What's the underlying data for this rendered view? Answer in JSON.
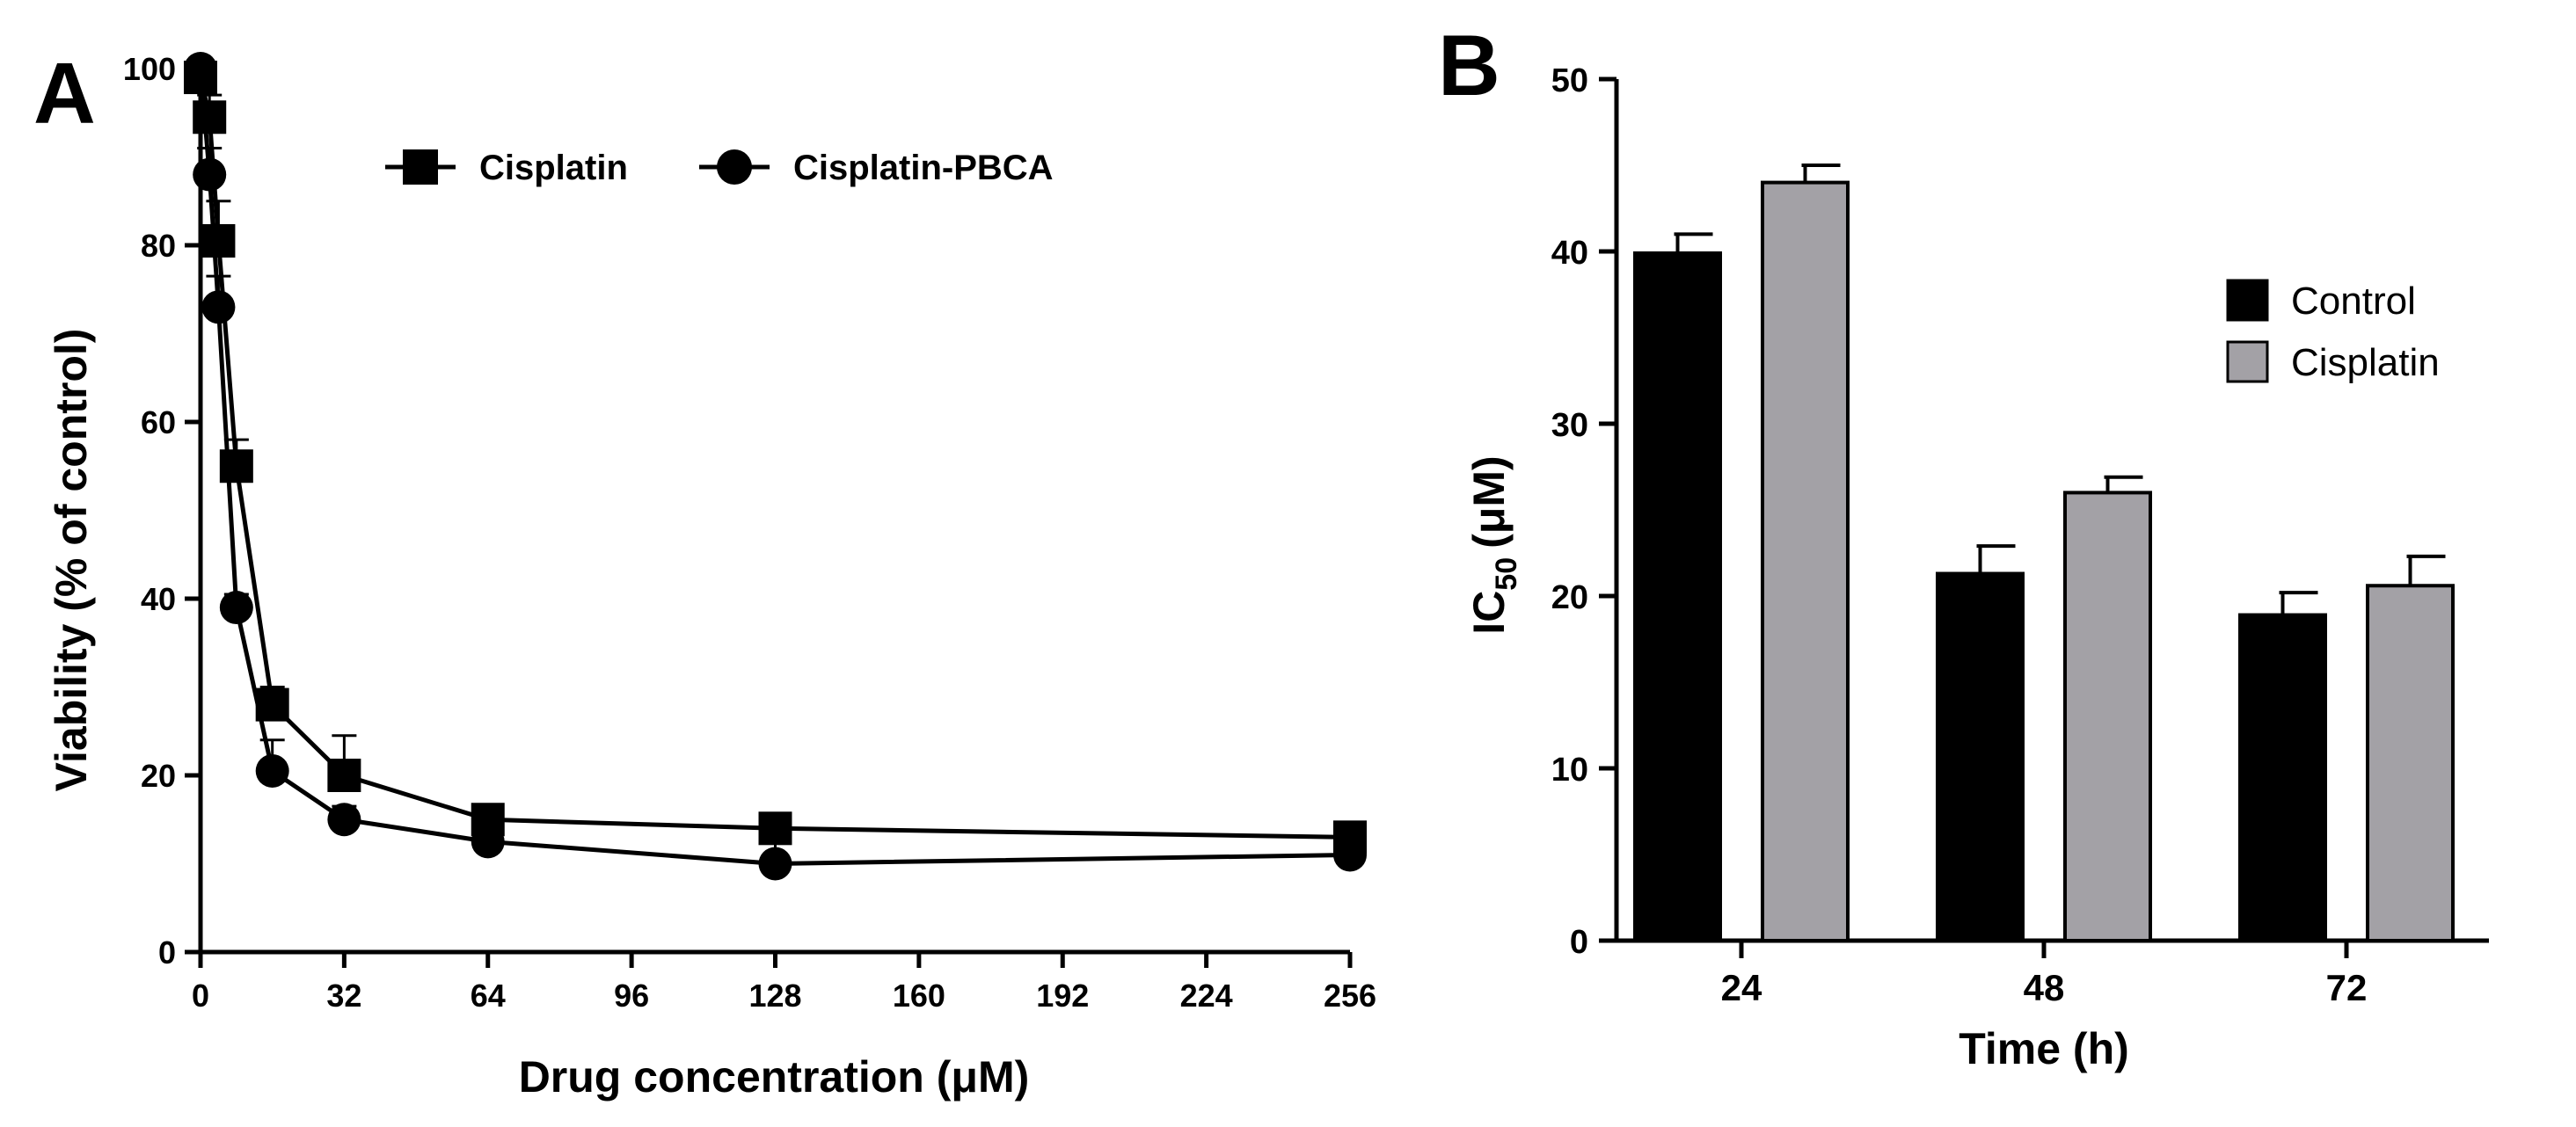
{
  "chart_data": [
    {
      "panel": "A",
      "type": "line",
      "title": "",
      "xlabel": "Drug concentration (μM)",
      "ylabel": "Viability (% of control)",
      "xlim": [
        0,
        256
      ],
      "ylim": [
        0,
        100
      ],
      "xticks": [
        0,
        32,
        64,
        96,
        128,
        160,
        192,
        224,
        256
      ],
      "yticks": [
        0,
        20,
        40,
        60,
        80,
        100
      ],
      "legend_position": "top",
      "series": [
        {
          "name": "Cisplatin",
          "marker": "square",
          "x": [
            0,
            2,
            4,
            8,
            16,
            32,
            64,
            128,
            256
          ],
          "y": [
            99,
            94.5,
            80.5,
            55,
            28,
            20,
            15,
            14,
            13
          ],
          "err": [
            1.5,
            2.5,
            4.5,
            3,
            2,
            4.5,
            1.5,
            1.5,
            1
          ]
        },
        {
          "name": "Cisplatin-PBCA",
          "marker": "circle",
          "x": [
            0,
            2,
            4,
            8,
            16,
            32,
            64,
            128,
            256
          ],
          "y": [
            100,
            88,
            73,
            39,
            20.5,
            15,
            12.5,
            10,
            11
          ],
          "err": [
            1.5,
            3,
            3.5,
            1.5,
            3.5,
            1.5,
            3.5,
            3,
            1
          ]
        }
      ]
    },
    {
      "panel": "B",
      "type": "bar",
      "title": "",
      "xlabel": "Time (h)",
      "ylabel_main": "IC",
      "ylabel_sub": "50",
      "ylabel_unit": "(μM)",
      "categories": [
        "24",
        "48",
        "72"
      ],
      "ylim": [
        0,
        50
      ],
      "yticks": [
        0,
        10,
        20,
        30,
        40,
        50
      ],
      "legend_position": "right",
      "series": [
        {
          "name": "Control",
          "color": "#000000",
          "values": [
            39.9,
            21.3,
            18.9
          ],
          "err": [
            1.1,
            1.6,
            1.3
          ]
        },
        {
          "name": "Cisplatin",
          "color": "#a3a1a6",
          "values": [
            44.0,
            26.0,
            20.6
          ],
          "err": [
            1.0,
            0.9,
            1.7
          ]
        }
      ]
    }
  ]
}
